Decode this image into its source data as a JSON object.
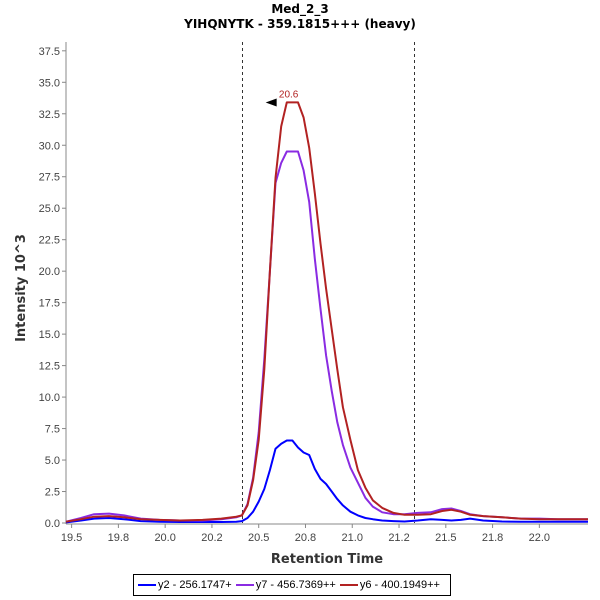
{
  "chart_data": {
    "type": "line",
    "title": "Med_2_3",
    "subtitle": "YIHQNYTK - 359.1815+++ (heavy)",
    "xlabel": "Retention Time",
    "ylabel": "Intensity 10^3",
    "xlim": [
      19.47,
      22.26
    ],
    "ylim": [
      0,
      38.2
    ],
    "x_ticks": [
      19.5,
      19.75,
      20.0,
      20.25,
      20.5,
      20.75,
      21.0,
      21.25,
      21.5,
      21.75,
      22.0
    ],
    "x_tick_labels": [
      "19.5",
      "19.8",
      "20.0",
      "20.2",
      "20.5",
      "20.8",
      "21.0",
      "21.2",
      "21.5",
      "21.8",
      "22.0"
    ],
    "y_ticks": [
      0,
      2.5,
      5,
      7.5,
      10,
      12.5,
      15,
      17.5,
      20,
      22.5,
      25,
      27.5,
      30,
      32.5,
      35,
      37.5
    ],
    "y_tick_labels": [
      "0.0",
      "2.5",
      "5.0",
      "7.5",
      "10.0",
      "12.5",
      "15.0",
      "17.5",
      "20.0",
      "22.5",
      "25.0",
      "27.5",
      "30.0",
      "32.5",
      "35.0",
      "37.5"
    ],
    "grid": false,
    "legend_position": "bottom",
    "boundaries": [
      20.41,
      21.33
    ],
    "annotation": {
      "text": "20.6",
      "x": 20.66,
      "y": 33.4,
      "color": "#b22222"
    },
    "series": [
      {
        "name": "y2 - 256.1747+",
        "color": "#0000ff",
        "x": [
          19.47,
          19.55,
          19.62,
          19.7,
          19.78,
          19.87,
          19.97,
          20.08,
          20.2,
          20.3,
          20.38,
          20.41,
          20.44,
          20.47,
          20.5,
          20.53,
          20.56,
          20.59,
          20.62,
          20.65,
          20.68,
          20.71,
          20.74,
          20.77,
          20.8,
          20.83,
          20.86,
          20.89,
          20.92,
          20.95,
          20.99,
          21.03,
          21.07,
          21.11,
          21.16,
          21.22,
          21.28,
          21.35,
          21.42,
          21.48,
          21.53,
          21.58,
          21.63,
          21.7,
          21.8,
          21.9,
          22.0,
          22.1,
          22.26
        ],
        "y": [
          0.05,
          0.2,
          0.35,
          0.4,
          0.3,
          0.15,
          0.1,
          0.08,
          0.08,
          0.08,
          0.1,
          0.15,
          0.4,
          0.9,
          1.7,
          2.7,
          4.2,
          5.9,
          6.3,
          6.55,
          6.55,
          6.0,
          5.6,
          5.4,
          4.3,
          3.5,
          3.1,
          2.5,
          1.9,
          1.4,
          0.9,
          0.6,
          0.4,
          0.3,
          0.2,
          0.15,
          0.12,
          0.2,
          0.3,
          0.25,
          0.2,
          0.25,
          0.35,
          0.2,
          0.12,
          0.1,
          0.1,
          0.1,
          0.1
        ]
      },
      {
        "name": "y7 - 456.7369++",
        "color": "#8a2be2",
        "x": [
          19.47,
          19.55,
          19.62,
          19.7,
          19.78,
          19.87,
          19.97,
          20.08,
          20.2,
          20.3,
          20.38,
          20.41,
          20.44,
          20.47,
          20.5,
          20.53,
          20.56,
          20.59,
          20.62,
          20.65,
          20.68,
          20.71,
          20.74,
          20.77,
          20.8,
          20.83,
          20.86,
          20.89,
          20.92,
          20.95,
          20.99,
          21.03,
          21.07,
          21.11,
          21.16,
          21.22,
          21.28,
          21.35,
          21.42,
          21.48,
          21.53,
          21.58,
          21.63,
          21.7,
          21.8,
          21.9,
          22.0,
          22.1,
          22.26
        ],
        "y": [
          0.1,
          0.4,
          0.7,
          0.75,
          0.6,
          0.35,
          0.25,
          0.2,
          0.2,
          0.3,
          0.45,
          0.6,
          1.5,
          3.6,
          7.2,
          13.0,
          20.0,
          27.0,
          28.6,
          29.5,
          29.5,
          29.5,
          28.0,
          25.5,
          21.0,
          17.0,
          13.3,
          10.5,
          8.0,
          6.2,
          4.4,
          3.2,
          2.0,
          1.3,
          0.85,
          0.7,
          0.7,
          0.8,
          0.85,
          1.1,
          1.15,
          0.95,
          0.7,
          0.55,
          0.45,
          0.35,
          0.35,
          0.3,
          0.3
        ]
      },
      {
        "name": "y6 - 400.1949++",
        "color": "#b22222",
        "x": [
          19.47,
          19.55,
          19.62,
          19.7,
          19.78,
          19.87,
          19.97,
          20.08,
          20.2,
          20.3,
          20.38,
          20.41,
          20.44,
          20.47,
          20.5,
          20.53,
          20.56,
          20.59,
          20.62,
          20.65,
          20.68,
          20.71,
          20.74,
          20.77,
          20.8,
          20.83,
          20.86,
          20.89,
          20.92,
          20.95,
          20.99,
          21.03,
          21.07,
          21.11,
          21.16,
          21.22,
          21.28,
          21.35,
          21.42,
          21.48,
          21.53,
          21.58,
          21.63,
          21.7,
          21.8,
          21.9,
          22.0,
          22.1,
          22.26
        ],
        "y": [
          0.1,
          0.3,
          0.5,
          0.55,
          0.45,
          0.3,
          0.25,
          0.2,
          0.25,
          0.35,
          0.5,
          0.6,
          1.4,
          3.4,
          6.6,
          12.2,
          20.0,
          27.4,
          31.5,
          33.4,
          33.4,
          33.4,
          32.2,
          29.8,
          26.2,
          22.2,
          18.6,
          15.4,
          12.2,
          9.2,
          6.6,
          4.2,
          2.8,
          1.8,
          1.2,
          0.8,
          0.65,
          0.65,
          0.7,
          0.95,
          1.05,
          0.9,
          0.65,
          0.55,
          0.45,
          0.35,
          0.3,
          0.3,
          0.3
        ]
      }
    ]
  }
}
